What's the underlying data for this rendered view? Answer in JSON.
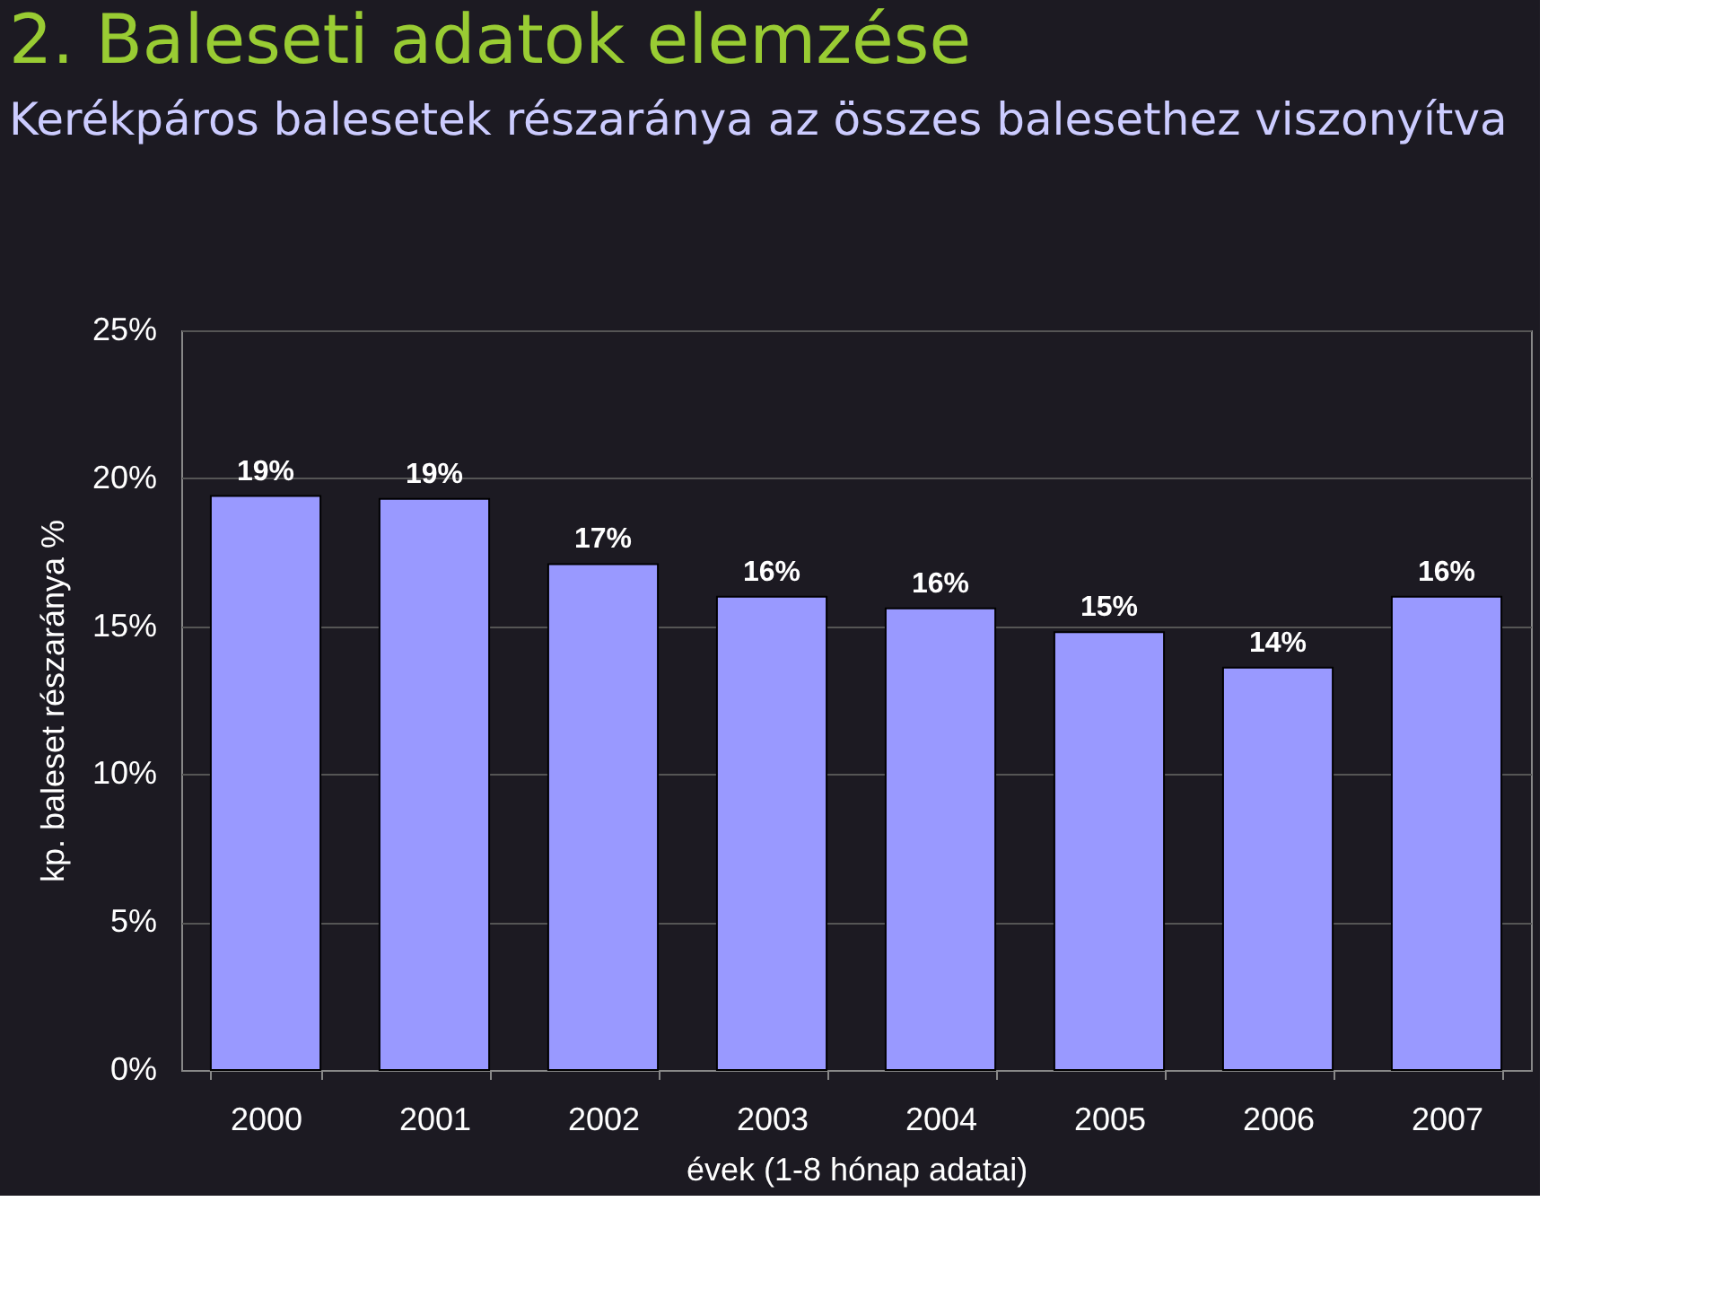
{
  "chart_data": {
    "type": "bar",
    "title": "2. Baleseti adatok elemzése",
    "subtitle": "Kerékpáros balesetek részaránya az összes balesethez viszonyítva",
    "xlabel": "évek (1-8 hónap adatai)",
    "ylabel": "kp. baleset részaránya %",
    "categories": [
      "2000",
      "2001",
      "2002",
      "2003",
      "2004",
      "2005",
      "2006",
      "2007"
    ],
    "values": [
      19.4,
      19.3,
      17.1,
      16.0,
      15.6,
      14.8,
      13.6,
      16.0
    ],
    "value_labels": [
      "19%",
      "19%",
      "17%",
      "16%",
      "16%",
      "15%",
      "14%",
      "16%"
    ],
    "color": "#9999ff",
    "ylim": [
      0,
      25
    ],
    "yticks": [
      {
        "value": 0,
        "label": "0%"
      },
      {
        "value": 5,
        "label": "5%"
      },
      {
        "value": 10,
        "label": "10%"
      },
      {
        "value": 15,
        "label": "15%"
      },
      {
        "value": 20,
        "label": "20%"
      },
      {
        "value": 25,
        "label": "25%"
      }
    ],
    "grid": "y"
  }
}
